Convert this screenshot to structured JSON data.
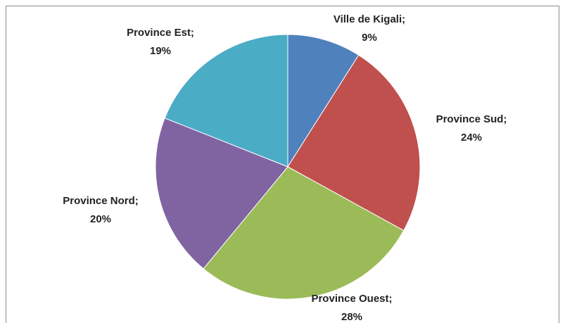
{
  "chart_data": {
    "type": "pie",
    "categories": [
      "Ville de Kigali;",
      "Province Sud;",
      "Province Ouest;",
      "Province Nord;",
      "Province Est;"
    ],
    "values": [
      9,
      24,
      28,
      20,
      19
    ],
    "value_labels": [
      "9%",
      "24%",
      "28%",
      "20%",
      "19%"
    ],
    "colors": [
      "#4f81bd",
      "#c0504d",
      "#9bbb59",
      "#8064a2",
      "#4bacc6"
    ]
  }
}
